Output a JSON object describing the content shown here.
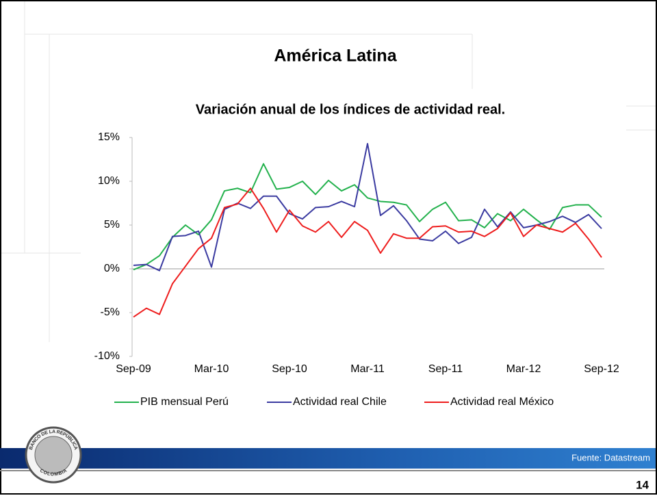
{
  "slide": {
    "title": "América Latina",
    "source": "Fuente: Datastream",
    "page": "14"
  },
  "logo": {
    "top": "BANCO DE LA REPÚBLICA",
    "bottom": "COLOMBIA"
  },
  "chart_data": {
    "type": "line",
    "title": "Variación anual de los índices de actividad real.",
    "categories": [
      "Sep-09",
      null,
      null,
      null,
      null,
      null,
      "Mar-10",
      null,
      null,
      null,
      null,
      null,
      "Sep-10",
      null,
      null,
      null,
      null,
      null,
      "Mar-11",
      null,
      null,
      null,
      null,
      null,
      "Sep-11",
      null,
      null,
      null,
      null,
      null,
      "Mar-12",
      null,
      null,
      null,
      null,
      null,
      "Sep-12"
    ],
    "series": [
      {
        "name": "PIB mensual Perú",
        "color": "#22b14c",
        "values": [
          -0.1,
          0.5,
          1.5,
          3.6,
          5.0,
          3.9,
          5.6,
          8.9,
          9.2,
          8.7,
          12.0,
          9.1,
          9.3,
          10.0,
          8.5,
          10.1,
          8.9,
          9.6,
          8.1,
          7.7,
          7.6,
          7.3,
          5.4,
          6.8,
          7.6,
          5.5,
          5.6,
          4.7,
          6.3,
          5.5,
          6.8,
          5.6,
          4.5,
          7.0,
          7.3,
          7.3,
          5.9
        ]
      },
      {
        "name": "Actividad real Chile",
        "color": "#3a3aa0",
        "values": [
          0.4,
          0.5,
          -0.2,
          3.7,
          3.8,
          4.3,
          0.2,
          6.8,
          7.5,
          6.9,
          8.3,
          8.3,
          6.3,
          5.7,
          7.0,
          7.1,
          7.7,
          7.1,
          14.3,
          6.1,
          7.2,
          5.5,
          3.4,
          3.2,
          4.3,
          2.9,
          3.6,
          6.8,
          4.8,
          6.5,
          4.7,
          5.0,
          5.4,
          6.0,
          5.3,
          6.2,
          4.6
        ]
      },
      {
        "name": "Actividad real México",
        "color": "#ee1c1c",
        "values": [
          -5.5,
          -4.5,
          -5.2,
          -1.7,
          0.3,
          2.3,
          3.5,
          7.0,
          7.4,
          9.2,
          6.9,
          4.2,
          6.7,
          4.9,
          4.2,
          5.4,
          3.6,
          5.4,
          4.4,
          1.8,
          4.0,
          3.5,
          3.5,
          4.8,
          4.9,
          4.2,
          4.3,
          3.7,
          4.6,
          6.4,
          3.7,
          5.0,
          4.6,
          4.2,
          5.2,
          3.4,
          1.3
        ]
      }
    ],
    "ylim": [
      -10,
      15
    ],
    "yticks": [
      {
        "value": -10,
        "label": "-10%"
      },
      {
        "value": -5,
        "label": "-5%"
      },
      {
        "value": 0,
        "label": "0%"
      },
      {
        "value": 5,
        "label": "5%"
      },
      {
        "value": 10,
        "label": "10%"
      },
      {
        "value": 15,
        "label": "15%"
      }
    ],
    "legend": "bottom"
  }
}
